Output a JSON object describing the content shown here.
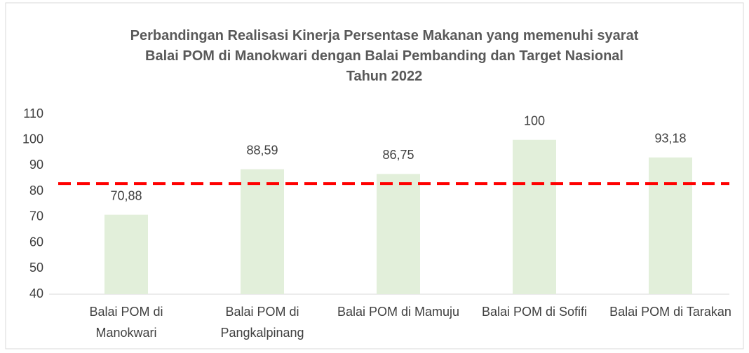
{
  "chart_data": {
    "type": "bar",
    "title": "Perbandingan Realisasi Kinerja Persentase Makanan yang memenuhi syarat Balai POM di Manokwari dengan Balai Pembanding dan Target Nasional Tahun 2022",
    "categories": [
      "Balai POM di Manokwari",
      "Balai POM di Pangkalpinang",
      "Balai POM di Mamuju",
      "Balai POM di Sofifi",
      "Balai POM di Tarakan"
    ],
    "values": [
      70.88,
      88.59,
      86.75,
      100,
      93.18
    ],
    "value_labels": [
      "70,88",
      "88,59",
      "86,75",
      "100",
      "93,18"
    ],
    "color": "#e2efda",
    "target": 83,
    "target_color": "#ff0000",
    "ylim": [
      40,
      110
    ],
    "yticks": [
      40,
      50,
      60,
      70,
      80,
      90,
      100,
      110
    ],
    "grid": false
  }
}
